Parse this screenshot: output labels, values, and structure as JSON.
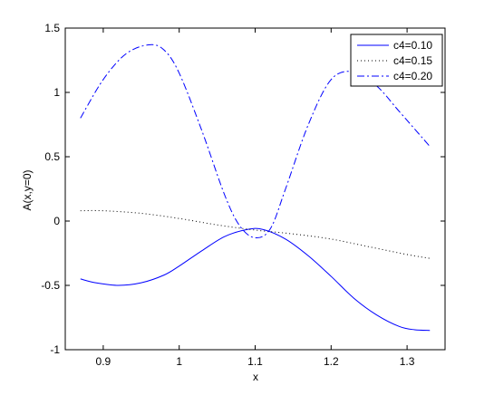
{
  "chart_data": {
    "type": "line",
    "title": "",
    "xlabel": "x",
    "ylabel": "A(x,y=0)",
    "xlim": [
      0.85,
      1.35
    ],
    "ylim": [
      -1,
      1.5
    ],
    "xticks": [
      "0.9",
      "1",
      "1.1",
      "1.2",
      "1.3"
    ],
    "xtick_values": [
      0.9,
      1.0,
      1.1,
      1.2,
      1.3
    ],
    "yticks": [
      "-1",
      "-0.5",
      "0",
      "0.5",
      "1",
      "1.5"
    ],
    "ytick_values": [
      -1,
      -0.5,
      0,
      0.5,
      1,
      1.5
    ],
    "grid": false,
    "legend_position": "top-right",
    "series": [
      {
        "name": "c4=0.10",
        "style": "solid",
        "color": "#0000ff",
        "x": [
          0.87,
          0.89,
          0.92,
          0.95,
          0.98,
          1.0,
          1.03,
          1.06,
          1.09,
          1.11,
          1.14,
          1.17,
          1.2,
          1.23,
          1.26,
          1.29,
          1.31,
          1.33
        ],
        "y": [
          -0.45,
          -0.48,
          -0.5,
          -0.48,
          -0.42,
          -0.35,
          -0.23,
          -0.12,
          -0.065,
          -0.065,
          -0.14,
          -0.27,
          -0.43,
          -0.6,
          -0.73,
          -0.82,
          -0.845,
          -0.85
        ]
      },
      {
        "name": "c4=0.15",
        "style": "dotted",
        "color": "#000000",
        "x": [
          0.87,
          0.9,
          0.95,
          1.0,
          1.05,
          1.1,
          1.15,
          1.2,
          1.25,
          1.3,
          1.33
        ],
        "y": [
          0.08,
          0.08,
          0.06,
          0.02,
          -0.03,
          -0.07,
          -0.1,
          -0.14,
          -0.2,
          -0.26,
          -0.29
        ]
      },
      {
        "name": "c4=0.20",
        "style": "dashdot",
        "color": "#0000ff",
        "x": [
          0.87,
          0.9,
          0.93,
          0.96,
          0.98,
          1.0,
          1.03,
          1.06,
          1.08,
          1.1,
          1.12,
          1.14,
          1.17,
          1.2,
          1.23,
          1.26,
          1.29,
          1.33
        ],
        "y": [
          0.8,
          1.1,
          1.3,
          1.37,
          1.33,
          1.15,
          0.7,
          0.2,
          -0.04,
          -0.13,
          -0.06,
          0.25,
          0.75,
          1.1,
          1.16,
          1.05,
          0.85,
          0.58
        ]
      }
    ]
  }
}
